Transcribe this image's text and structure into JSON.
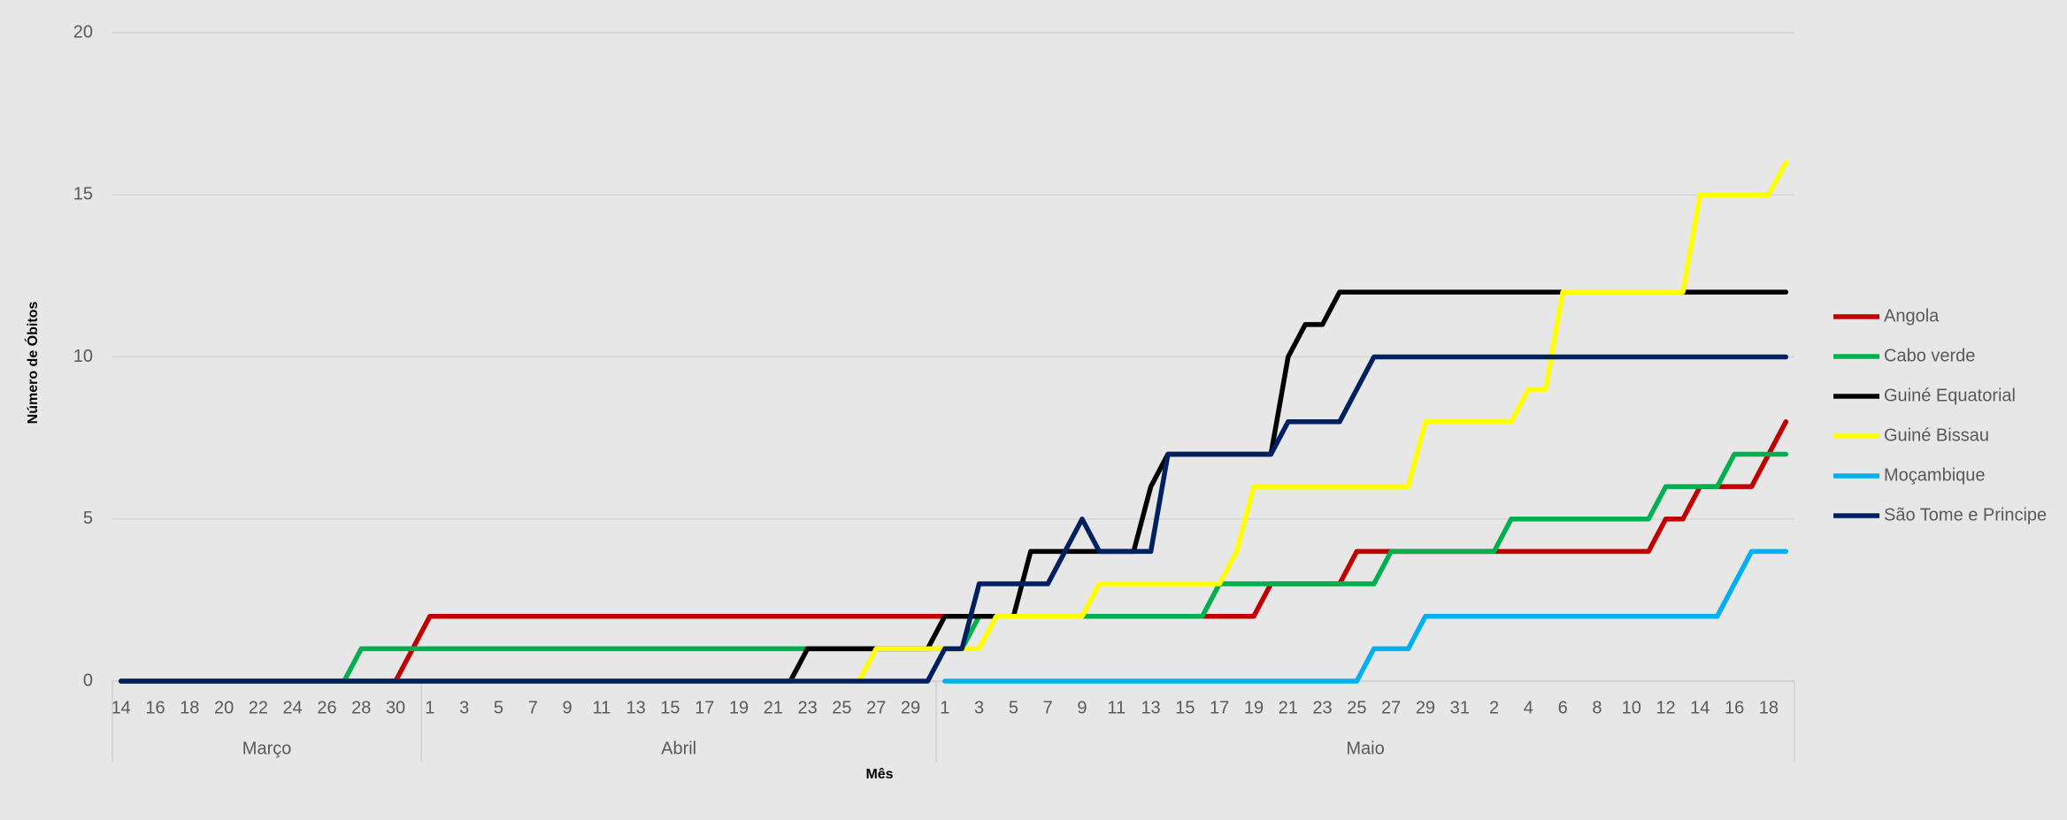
{
  "chart_data": {
    "type": "line",
    "y_axis_label": "Número de Óbitos",
    "x_axis_label": "Mês",
    "ylim": [
      0,
      20
    ],
    "yticks": [
      0,
      5,
      10,
      15,
      20
    ],
    "grid": true,
    "legend": "right",
    "categories": [
      "14",
      null,
      "16",
      null,
      "18",
      null,
      "20",
      null,
      "22",
      null,
      "24",
      null,
      "26",
      null,
      "28",
      null,
      "30",
      null,
      "1",
      null,
      "3",
      null,
      "5",
      null,
      "7",
      null,
      "9",
      null,
      "11",
      null,
      "13",
      null,
      "15",
      null,
      "17",
      null,
      "19",
      null,
      "21",
      null,
      "23",
      null,
      "25",
      null,
      "27",
      null,
      "29",
      null,
      "1",
      null,
      "3",
      null,
      "5",
      null,
      "7",
      null,
      "9",
      null,
      "11",
      null,
      "13",
      null,
      "15",
      null,
      "17",
      null,
      "19",
      null,
      "21",
      null,
      "23",
      null,
      "25",
      null,
      "27",
      null,
      "29",
      null,
      "31",
      null,
      "2",
      null,
      "4",
      null,
      "6",
      null,
      "8",
      null,
      "10",
      null,
      "12",
      null,
      "14",
      null,
      "16",
      null,
      "18",
      null
    ],
    "category_groups": [
      {
        "label": "Março",
        "size": 18
      },
      {
        "label": "Abril",
        "size": 30
      },
      {
        "label": "Maio",
        "size": 50
      }
    ],
    "series": [
      {
        "name": "Angola",
        "color": "#c00000",
        "values": [
          0,
          0,
          0,
          0,
          0,
          0,
          0,
          0,
          0,
          0,
          0,
          0,
          0,
          0,
          0,
          0,
          0,
          1,
          2,
          2,
          2,
          2,
          2,
          2,
          2,
          2,
          2,
          2,
          2,
          2,
          2,
          2,
          2,
          2,
          2,
          2,
          2,
          2,
          2,
          2,
          2,
          2,
          2,
          2,
          2,
          2,
          2,
          2,
          2,
          2,
          2,
          2,
          2,
          2,
          2,
          2,
          2,
          2,
          2,
          2,
          2,
          2,
          2,
          2,
          2,
          2,
          2,
          3,
          3,
          3,
          3,
          3,
          4,
          4,
          4,
          4,
          4,
          4,
          4,
          4,
          4,
          4,
          4,
          4,
          4,
          4,
          4,
          4,
          4,
          4,
          5,
          5,
          6,
          6,
          6,
          6,
          7,
          8
        ]
      },
      {
        "name": "Cabo verde",
        "color": "#00b050",
        "values": [
          0,
          0,
          0,
          0,
          0,
          0,
          0,
          0,
          0,
          0,
          0,
          0,
          0,
          0,
          1,
          1,
          1,
          1,
          1,
          1,
          1,
          1,
          1,
          1,
          1,
          1,
          1,
          1,
          1,
          1,
          1,
          1,
          1,
          1,
          1,
          1,
          1,
          1,
          1,
          1,
          1,
          1,
          1,
          1,
          1,
          1,
          1,
          1,
          1,
          1,
          2,
          2,
          2,
          2,
          2,
          2,
          2,
          2,
          2,
          2,
          2,
          2,
          2,
          2,
          3,
          3,
          3,
          3,
          3,
          3,
          3,
          3,
          3,
          3,
          4,
          4,
          4,
          4,
          4,
          4,
          4,
          5,
          5,
          5,
          5,
          5,
          5,
          5,
          5,
          5,
          6,
          6,
          6,
          6,
          7,
          7,
          7,
          7
        ]
      },
      {
        "name": "Guiné Equatorial",
        "color": "#000000",
        "values": [
          0,
          0,
          0,
          0,
          0,
          0,
          0,
          0,
          0,
          0,
          0,
          0,
          0,
          0,
          0,
          0,
          0,
          0,
          0,
          0,
          0,
          0,
          0,
          0,
          0,
          0,
          0,
          0,
          0,
          0,
          0,
          0,
          0,
          0,
          0,
          0,
          0,
          0,
          0,
          0,
          1,
          1,
          1,
          1,
          1,
          1,
          1,
          1,
          2,
          2,
          2,
          2,
          2,
          4,
          4,
          4,
          4,
          4,
          4,
          4,
          6,
          7,
          7,
          7,
          7,
          7,
          7,
          7,
          10,
          11,
          11,
          12,
          12,
          12,
          12,
          12,
          12,
          12,
          12,
          12,
          12,
          12,
          12,
          12,
          12,
          12,
          12,
          12,
          12,
          12,
          12,
          12,
          12,
          12,
          12,
          12,
          12,
          12
        ]
      },
      {
        "name": "Guiné Bissau",
        "color": "#ffff00",
        "values": [
          0,
          0,
          0,
          0,
          0,
          0,
          0,
          0,
          0,
          0,
          0,
          0,
          0,
          0,
          0,
          0,
          0,
          0,
          0,
          0,
          0,
          0,
          0,
          0,
          0,
          0,
          0,
          0,
          0,
          0,
          0,
          0,
          0,
          0,
          0,
          0,
          0,
          0,
          0,
          0,
          0,
          0,
          0,
          0,
          1,
          1,
          1,
          1,
          1,
          1,
          1,
          2,
          2,
          2,
          2,
          2,
          2,
          3,
          3,
          3,
          3,
          3,
          3,
          3,
          3,
          4,
          6,
          6,
          6,
          6,
          6,
          6,
          6,
          6,
          6,
          6,
          8,
          8,
          8,
          8,
          8,
          8,
          9,
          9,
          12,
          12,
          12,
          12,
          12,
          12,
          12,
          12,
          15,
          15,
          15,
          15,
          15,
          16
        ]
      },
      {
        "name": "Moçambique",
        "color": "#00b0f0",
        "values": [
          null,
          null,
          null,
          null,
          null,
          null,
          null,
          null,
          null,
          null,
          null,
          null,
          null,
          null,
          null,
          null,
          null,
          null,
          null,
          null,
          null,
          null,
          null,
          null,
          null,
          null,
          null,
          null,
          null,
          null,
          null,
          null,
          null,
          null,
          null,
          null,
          null,
          null,
          null,
          null,
          null,
          null,
          null,
          null,
          null,
          null,
          null,
          null,
          0,
          0,
          0,
          0,
          0,
          0,
          0,
          0,
          0,
          0,
          0,
          0,
          0,
          0,
          0,
          0,
          0,
          0,
          0,
          0,
          0,
          0,
          0,
          0,
          0,
          1,
          1,
          1,
          2,
          2,
          2,
          2,
          2,
          2,
          2,
          2,
          2,
          2,
          2,
          2,
          2,
          2,
          2,
          2,
          2,
          2,
          3,
          4,
          4,
          4
        ]
      },
      {
        "name": "São Tome e Principe",
        "color": "#002060",
        "values": [
          0,
          0,
          0,
          0,
          0,
          0,
          0,
          0,
          0,
          0,
          0,
          0,
          0,
          0,
          0,
          0,
          0,
          0,
          0,
          0,
          0,
          0,
          0,
          0,
          0,
          0,
          0,
          0,
          0,
          0,
          0,
          0,
          0,
          0,
          0,
          0,
          0,
          0,
          0,
          0,
          0,
          0,
          0,
          0,
          0,
          0,
          0,
          0,
          1,
          1,
          3,
          3,
          3,
          3,
          3,
          4,
          5,
          4,
          4,
          4,
          4,
          7,
          7,
          7,
          7,
          7,
          7,
          7,
          8,
          8,
          8,
          8,
          9,
          10,
          10,
          10,
          10,
          10,
          10,
          10,
          10,
          10,
          10,
          10,
          10,
          10,
          10,
          10,
          10,
          10,
          10,
          10,
          10,
          10,
          10,
          10,
          10,
          10
        ]
      }
    ]
  }
}
